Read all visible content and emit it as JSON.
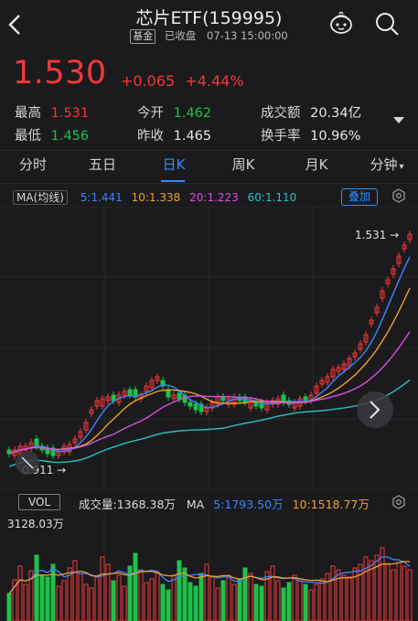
{
  "header": {
    "title": "芯片ETF(159995)",
    "badge": "基金",
    "status": "已收盘",
    "datetime": "07-13 15:00:00"
  },
  "quote": {
    "price": "1.530",
    "change": "+0.065",
    "change_pct": "+4.44%",
    "high_label": "最高",
    "high": "1.531",
    "low_label": "最低",
    "low": "1.456",
    "open_label": "今开",
    "open": "1.462",
    "prev_label": "昨收",
    "prev": "1.465",
    "turnover_label": "成交额",
    "turnover": "20.34亿",
    "rate_label": "换手率",
    "rate": "10.96%"
  },
  "tabs": [
    {
      "label": "分时"
    },
    {
      "label": "五日"
    },
    {
      "label": "日K"
    },
    {
      "label": "周K"
    },
    {
      "label": "月K"
    },
    {
      "label": "分钟"
    }
  ],
  "ma": {
    "title": "MA(均线)",
    "ma5": "5:1.441",
    "ma10": "10:1.338",
    "ma20": "20:1.223",
    "ma60": "60:1.110",
    "button": "叠加"
  },
  "price_chart": {
    "max_label": "1.531",
    "min_label": "0.911"
  },
  "volume": {
    "tab": "VOL",
    "text": "成交量:1368.38万",
    "ma_label": "MA",
    "ma5": "5:1793.50万",
    "ma10": "10:1518.77万",
    "max": "3128.03万"
  },
  "colors": {
    "up": "#f4373b",
    "down": "#1ec249",
    "accent": "#2f8cff",
    "ma5": "#3a86ff",
    "ma10": "#f0a030",
    "ma20": "#d94fe0",
    "ma60": "#2fc0c0"
  },
  "icons": [
    "back-arrow-icon",
    "robot-icon",
    "search-icon",
    "dropdown-icon",
    "gear-icon",
    "chevron-right-icon",
    "collapse-icon"
  ]
}
